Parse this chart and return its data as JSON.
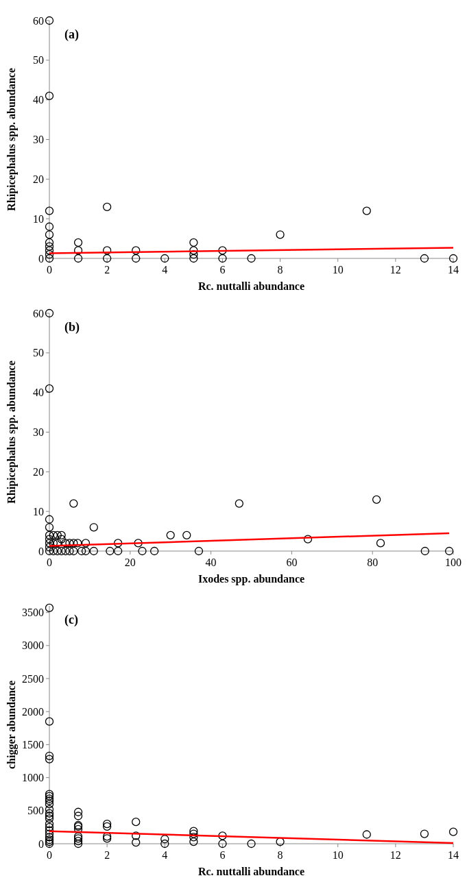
{
  "chart_data": [
    {
      "type": "scatter",
      "xlabel": "Rc. nuttalli abundance",
      "ylabel": "Rhipicephalus spp. abundance",
      "annotations": [
        "(a)"
      ],
      "xlim": [
        0,
        14
      ],
      "xticks": [
        0,
        2,
        4,
        6,
        8,
        10,
        12,
        14
      ],
      "ylim": [
        0,
        60
      ],
      "yticks": [
        0,
        10,
        20,
        30,
        40,
        50,
        60
      ],
      "series": [
        {
          "marker": "circle",
          "color": "#000000",
          "x": [
            0,
            0,
            0,
            0,
            0,
            0,
            0,
            0,
            0,
            0,
            1,
            1,
            1,
            2,
            2,
            2,
            3,
            3,
            4,
            5,
            5,
            5,
            5,
            6,
            6,
            7,
            8,
            11,
            13,
            14
          ],
          "values": [
            60,
            41,
            12,
            8,
            6,
            4,
            3,
            2,
            1,
            0,
            4,
            2,
            0,
            13,
            2,
            0,
            2,
            0,
            0,
            4,
            2,
            1,
            0,
            2,
            0,
            0,
            6,
            12,
            0,
            0
          ]
        },
        {
          "type": "line",
          "marker": "none",
          "color": "#ff0000",
          "x": [
            0,
            14
          ],
          "values": [
            1.3,
            2.7
          ]
        }
      ]
    },
    {
      "type": "scatter",
      "xlabel": "Ixodes spp. abundance",
      "ylabel": "Rhipicephalus spp. abundance",
      "annotations": [
        "(b)"
      ],
      "xlim": [
        0,
        100
      ],
      "xticks": [
        0,
        20,
        40,
        60,
        80,
        100
      ],
      "ylim": [
        0,
        60
      ],
      "yticks": [
        0,
        10,
        20,
        30,
        40,
        50,
        60
      ],
      "series": [
        {
          "marker": "circle",
          "color": "#000000",
          "x": [
            0,
            0,
            0,
            0,
            0,
            0,
            0,
            0,
            0,
            1,
            1,
            1,
            2,
            2,
            2,
            3,
            3,
            3,
            4,
            4,
            5,
            5,
            6,
            6,
            6,
            7,
            8,
            9,
            9,
            11,
            11,
            15,
            17,
            17,
            22,
            23,
            26,
            30,
            34,
            37,
            47,
            64,
            81,
            82,
            93,
            99
          ],
          "values": [
            60,
            41,
            8,
            6,
            4,
            3,
            2,
            1,
            0,
            4,
            2,
            0,
            4,
            2,
            0,
            4,
            3,
            0,
            2,
            0,
            2,
            0,
            12,
            2,
            0,
            2,
            0,
            2,
            0,
            6,
            0,
            0,
            2,
            0,
            2,
            0,
            0,
            4,
            4,
            0,
            12,
            3,
            13,
            2,
            0,
            0
          ]
        },
        {
          "type": "line",
          "marker": "none",
          "color": "#ff0000",
          "x": [
            0,
            99
          ],
          "values": [
            1.3,
            4.5
          ]
        }
      ]
    },
    {
      "type": "scatter",
      "xlabel": "Rc. nuttalli abundance",
      "ylabel": "chigger abundance",
      "annotations": [
        "(c)"
      ],
      "xlim": [
        0,
        14
      ],
      "xticks": [
        0,
        2,
        4,
        6,
        8,
        10,
        12,
        14
      ],
      "ylim": [
        0,
        3600
      ],
      "yticks": [
        0,
        500,
        1000,
        1500,
        2000,
        2500,
        3000,
        3500
      ],
      "series": [
        {
          "marker": "circle",
          "color": "#000000",
          "x": [
            0,
            0,
            0,
            0,
            0,
            0,
            0,
            0,
            0,
            0,
            0,
            0,
            0,
            0,
            0,
            0,
            0,
            0,
            0,
            0,
            0,
            1,
            1,
            1,
            1,
            1,
            1,
            1,
            1,
            1,
            2,
            2,
            2,
            2,
            3,
            3,
            3,
            4,
            4,
            5,
            5,
            5,
            5,
            6,
            6,
            7,
            8,
            11,
            13,
            14
          ],
          "values": [
            3570,
            1850,
            1330,
            1280,
            750,
            720,
            680,
            650,
            600,
            520,
            460,
            420,
            380,
            300,
            250,
            200,
            150,
            100,
            60,
            30,
            0,
            480,
            420,
            280,
            260,
            220,
            110,
            80,
            40,
            0,
            300,
            260,
            110,
            80,
            330,
            120,
            20,
            70,
            0,
            190,
            150,
            100,
            30,
            120,
            0,
            0,
            30,
            140,
            150,
            180
          ]
        },
        {
          "type": "line",
          "marker": "none",
          "color": "#ff0000",
          "x": [
            0,
            14
          ],
          "values": [
            190,
            10
          ]
        }
      ]
    }
  ]
}
